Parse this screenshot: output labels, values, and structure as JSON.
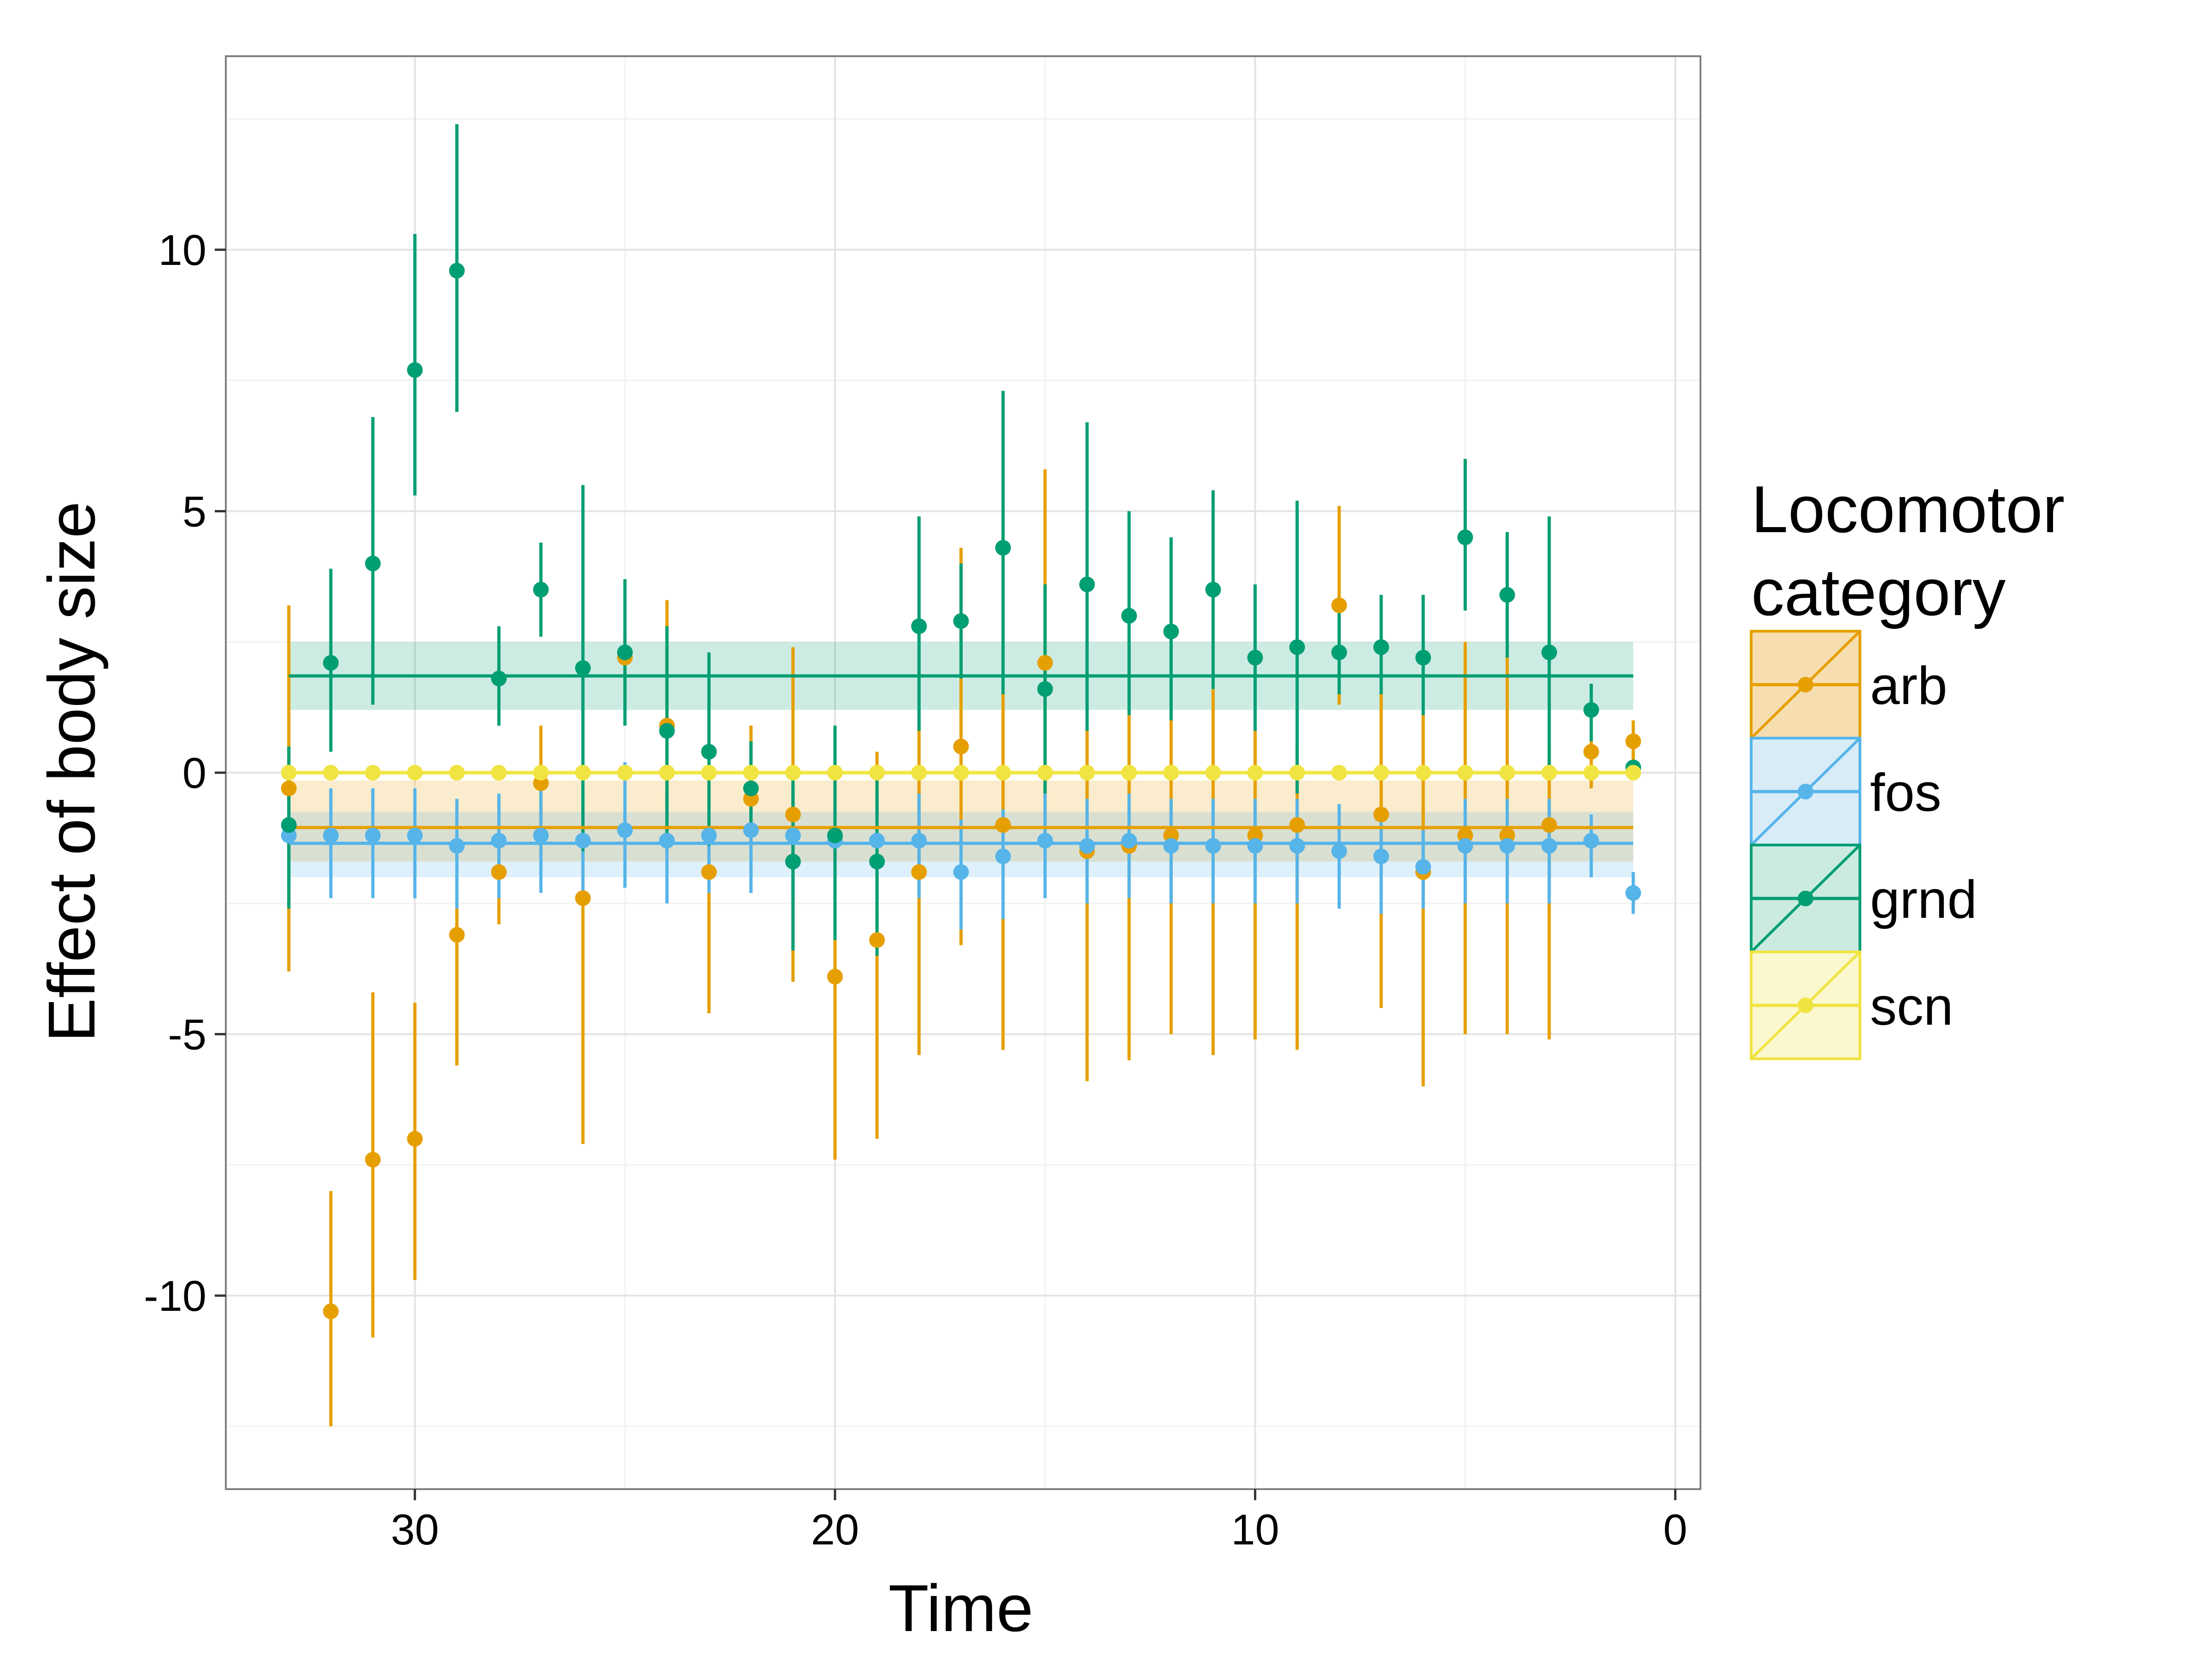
{
  "chart_data": {
    "type": "scatter",
    "xlabel": "Time",
    "ylabel": "Effect of body size",
    "xlim": [
      34.5,
      -0.6
    ],
    "ylim": [
      -13.7,
      13.7
    ],
    "x_ticks": [
      30,
      20,
      10,
      0
    ],
    "x_tick_labels": [
      "30",
      "20",
      "10",
      "0"
    ],
    "y_ticks": [
      10,
      5,
      0,
      -5,
      -10
    ],
    "y_tick_labels": [
      "10",
      "5",
      "0",
      "-5",
      "-10"
    ],
    "x_minor_ticks": [
      25,
      15,
      5
    ],
    "y_minor_ticks": [
      12.5,
      7.5,
      2.5,
      -2.5,
      -7.5,
      -12.5
    ],
    "grid": true,
    "legend": {
      "title_lines": [
        "Locomotor",
        "category"
      ],
      "position": "right"
    },
    "series": [
      {
        "name": "arb",
        "color": "#E69F00",
        "fill": "#F7DEB0",
        "mean": -1.05,
        "band": [
          -1.7,
          -0.15
        ],
        "points": [
          {
            "x": 33,
            "y": -0.3,
            "lo": -3.8,
            "hi": 3.2
          },
          {
            "x": 32,
            "y": -10.3,
            "lo": -12.5,
            "hi": -8.0
          },
          {
            "x": 31,
            "y": -7.4,
            "lo": -10.8,
            "hi": -4.2
          },
          {
            "x": 30,
            "y": -7.0,
            "lo": -9.7,
            "hi": -4.4
          },
          {
            "x": 29,
            "y": -3.1,
            "lo": -5.6,
            "hi": -2.3
          },
          {
            "x": 28,
            "y": -1.9,
            "lo": -2.9,
            "hi": -1.2
          },
          {
            "x": 27,
            "y": -0.2,
            "lo": -1.6,
            "hi": 0.9
          },
          {
            "x": 26,
            "y": -2.4,
            "lo": -7.1,
            "hi": -1.5
          },
          {
            "x": 25,
            "y": 2.2,
            "lo": 1.4,
            "hi": 2.6
          },
          {
            "x": 24,
            "y": 0.9,
            "lo": -1.5,
            "hi": 3.3
          },
          {
            "x": 23,
            "y": -1.9,
            "lo": -4.6,
            "hi": -1.2
          },
          {
            "x": 22,
            "y": -0.5,
            "lo": -1.3,
            "hi": 0.9
          },
          {
            "x": 21,
            "y": -0.8,
            "lo": -4.0,
            "hi": 2.4
          },
          {
            "x": 20,
            "y": -3.9,
            "lo": -7.4,
            "hi": -3.2
          },
          {
            "x": 19,
            "y": -3.2,
            "lo": -7.0,
            "hi": 0.4
          },
          {
            "x": 18,
            "y": -1.9,
            "lo": -5.4,
            "hi": 0.9
          },
          {
            "x": 17,
            "y": 0.5,
            "lo": -3.3,
            "hi": 4.3
          },
          {
            "x": 16,
            "y": -1.0,
            "lo": -5.3,
            "hi": 1.5
          },
          {
            "x": 15,
            "y": 2.1,
            "lo": -1.3,
            "hi": 5.8
          },
          {
            "x": 14,
            "y": -1.5,
            "lo": -5.9,
            "hi": 0.8
          },
          {
            "x": 13,
            "y": -1.4,
            "lo": -5.5,
            "hi": 1.1
          },
          {
            "x": 12,
            "y": -1.2,
            "lo": -5.0,
            "hi": 1.0
          },
          {
            "x": 11,
            "y": -1.4,
            "lo": -5.4,
            "hi": 1.6
          },
          {
            "x": 10,
            "y": -1.2,
            "lo": -5.1,
            "hi": 0.8
          },
          {
            "x": 9,
            "y": -1.0,
            "lo": -5.3,
            "hi": 0.6
          },
          {
            "x": 8,
            "y": 3.2,
            "lo": 1.3,
            "hi": 5.1
          },
          {
            "x": 7,
            "y": -0.8,
            "lo": -4.5,
            "hi": 1.5
          },
          {
            "x": 6,
            "y": -1.9,
            "lo": -6.0,
            "hi": 1.1
          },
          {
            "x": 5,
            "y": -1.2,
            "lo": -5.0,
            "hi": 2.5
          },
          {
            "x": 4,
            "y": -1.2,
            "lo": -5.0,
            "hi": 2.3
          },
          {
            "x": 3,
            "y": -1.0,
            "lo": -5.1,
            "hi": 0.5
          },
          {
            "x": 2,
            "y": 0.4,
            "lo": -0.3,
            "hi": 1.2
          },
          {
            "x": 1,
            "y": 0.6,
            "lo": 0.0,
            "hi": 1.0
          }
        ]
      },
      {
        "name": "fos",
        "color": "#56B4E9",
        "fill": "#D8ECF8",
        "mean": -1.35,
        "band": [
          -2.0,
          -0.75
        ],
        "points": [
          {
            "x": 33,
            "y": -1.2,
            "lo": -2.2,
            "hi": -0.3
          },
          {
            "x": 32,
            "y": -1.2,
            "lo": -2.4,
            "hi": -0.3
          },
          {
            "x": 31,
            "y": -1.2,
            "lo": -2.4,
            "hi": -0.3
          },
          {
            "x": 30,
            "y": -1.2,
            "lo": -2.4,
            "hi": -0.3
          },
          {
            "x": 29,
            "y": -1.4,
            "lo": -2.6,
            "hi": -0.5
          },
          {
            "x": 28,
            "y": -1.3,
            "lo": -2.4,
            "hi": -0.4
          },
          {
            "x": 27,
            "y": -1.2,
            "lo": -2.3,
            "hi": -0.3
          },
          {
            "x": 26,
            "y": -1.3,
            "lo": -2.4,
            "hi": -0.4
          },
          {
            "x": 25,
            "y": -1.1,
            "lo": -2.2,
            "hi": 0.2
          },
          {
            "x": 24,
            "y": -1.3,
            "lo": -2.5,
            "hi": -0.4
          },
          {
            "x": 23,
            "y": -1.2,
            "lo": -2.3,
            "hi": -0.3
          },
          {
            "x": 22,
            "y": -1.1,
            "lo": -2.3,
            "hi": -0.2
          },
          {
            "x": 21,
            "y": -1.2,
            "lo": -2.4,
            "hi": -0.3
          },
          {
            "x": 20,
            "y": -1.3,
            "lo": -2.4,
            "hi": -0.4
          },
          {
            "x": 19,
            "y": -1.3,
            "lo": -2.4,
            "hi": -0.4
          },
          {
            "x": 18,
            "y": -1.3,
            "lo": -2.4,
            "hi": -0.4
          },
          {
            "x": 17,
            "y": -1.9,
            "lo": -3.0,
            "hi": -0.9
          },
          {
            "x": 16,
            "y": -1.6,
            "lo": -2.8,
            "hi": -0.7
          },
          {
            "x": 15,
            "y": -1.3,
            "lo": -2.4,
            "hi": -0.4
          },
          {
            "x": 14,
            "y": -1.4,
            "lo": -2.5,
            "hi": -0.5
          },
          {
            "x": 13,
            "y": -1.3,
            "lo": -2.4,
            "hi": -0.4
          },
          {
            "x": 12,
            "y": -1.4,
            "lo": -2.5,
            "hi": -0.5
          },
          {
            "x": 11,
            "y": -1.4,
            "lo": -2.5,
            "hi": -0.5
          },
          {
            "x": 10,
            "y": -1.4,
            "lo": -2.5,
            "hi": -0.5
          },
          {
            "x": 9,
            "y": -1.4,
            "lo": -2.5,
            "hi": -0.5
          },
          {
            "x": 8,
            "y": -1.5,
            "lo": -2.6,
            "hi": -0.6
          },
          {
            "x": 7,
            "y": -1.6,
            "lo": -2.7,
            "hi": -0.7
          },
          {
            "x": 6,
            "y": -1.8,
            "lo": -2.6,
            "hi": -1.1
          },
          {
            "x": 5,
            "y": -1.4,
            "lo": -2.5,
            "hi": -0.5
          },
          {
            "x": 4,
            "y": -1.4,
            "lo": -2.5,
            "hi": -0.5
          },
          {
            "x": 3,
            "y": -1.4,
            "lo": -2.5,
            "hi": -0.5
          },
          {
            "x": 2,
            "y": -1.3,
            "lo": -2.0,
            "hi": -0.8
          },
          {
            "x": 1,
            "y": -2.3,
            "lo": -2.7,
            "hi": -1.9
          }
        ]
      },
      {
        "name": "grnd",
        "color": "#009E73",
        "fill": "#CCEBE0",
        "mean": 1.85,
        "band": [
          1.2,
          2.5
        ],
        "points": [
          {
            "x": 33,
            "y": -1.0,
            "lo": -2.6,
            "hi": 0.5
          },
          {
            "x": 32,
            "y": 2.1,
            "lo": 0.4,
            "hi": 3.9
          },
          {
            "x": 31,
            "y": 4.0,
            "lo": 1.3,
            "hi": 6.8
          },
          {
            "x": 30,
            "y": 7.7,
            "lo": 5.3,
            "hi": 10.3
          },
          {
            "x": 29,
            "y": 9.6,
            "lo": 6.9,
            "hi": 12.4
          },
          {
            "x": 28,
            "y": 1.8,
            "lo": 0.9,
            "hi": 2.8
          },
          {
            "x": 27,
            "y": 3.5,
            "lo": 2.6,
            "hi": 4.4
          },
          {
            "x": 26,
            "y": 2.0,
            "lo": -1.5,
            "hi": 5.5
          },
          {
            "x": 25,
            "y": 2.3,
            "lo": 0.9,
            "hi": 3.7
          },
          {
            "x": 24,
            "y": 0.8,
            "lo": -1.3,
            "hi": 2.8
          },
          {
            "x": 23,
            "y": 0.4,
            "lo": -1.4,
            "hi": 2.3
          },
          {
            "x": 22,
            "y": -0.3,
            "lo": -1.2,
            "hi": 0.6
          },
          {
            "x": 21,
            "y": -1.7,
            "lo": -3.4,
            "hi": 0.0
          },
          {
            "x": 20,
            "y": -1.2,
            "lo": -3.2,
            "hi": 0.9
          },
          {
            "x": 19,
            "y": -1.7,
            "lo": -3.5,
            "hi": 0.1
          },
          {
            "x": 18,
            "y": 2.8,
            "lo": 0.8,
            "hi": 4.9
          },
          {
            "x": 17,
            "y": 2.9,
            "lo": 1.8,
            "hi": 4.0
          },
          {
            "x": 16,
            "y": 4.3,
            "lo": 1.5,
            "hi": 7.3
          },
          {
            "x": 15,
            "y": 1.6,
            "lo": -0.4,
            "hi": 3.6
          },
          {
            "x": 14,
            "y": 3.6,
            "lo": 0.8,
            "hi": 6.7
          },
          {
            "x": 13,
            "y": 3.0,
            "lo": 1.1,
            "hi": 5.0
          },
          {
            "x": 12,
            "y": 2.7,
            "lo": 1.0,
            "hi": 4.5
          },
          {
            "x": 11,
            "y": 3.5,
            "lo": 1.6,
            "hi": 5.4
          },
          {
            "x": 10,
            "y": 2.2,
            "lo": 0.8,
            "hi": 3.6
          },
          {
            "x": 9,
            "y": 2.4,
            "lo": -0.4,
            "hi": 5.2
          },
          {
            "x": 8,
            "y": 2.3,
            "lo": 1.5,
            "hi": 3.2
          },
          {
            "x": 7,
            "y": 2.4,
            "lo": 1.5,
            "hi": 3.4
          },
          {
            "x": 6,
            "y": 2.2,
            "lo": 1.1,
            "hi": 3.4
          },
          {
            "x": 5,
            "y": 4.5,
            "lo": 3.1,
            "hi": 6.0
          },
          {
            "x": 4,
            "y": 3.4,
            "lo": 2.2,
            "hi": 4.6
          },
          {
            "x": 3,
            "y": 2.3,
            "lo": -0.1,
            "hi": 4.9
          },
          {
            "x": 2,
            "y": 1.2,
            "lo": 0.6,
            "hi": 1.7
          },
          {
            "x": 1,
            "y": 0.1,
            "lo": 0.0,
            "hi": 0.2
          }
        ]
      },
      {
        "name": "scn",
        "color": "#F0E442",
        "fill": "#FBF7CF",
        "mean": 0.0,
        "band": [
          -0.05,
          0.05
        ],
        "points": [
          {
            "x": 33,
            "y": 0
          },
          {
            "x": 32,
            "y": 0
          },
          {
            "x": 31,
            "y": 0
          },
          {
            "x": 30,
            "y": 0
          },
          {
            "x": 29,
            "y": 0
          },
          {
            "x": 28,
            "y": 0
          },
          {
            "x": 27,
            "y": 0
          },
          {
            "x": 26,
            "y": 0
          },
          {
            "x": 25,
            "y": 0
          },
          {
            "x": 24,
            "y": 0
          },
          {
            "x": 23,
            "y": 0
          },
          {
            "x": 22,
            "y": 0
          },
          {
            "x": 21,
            "y": 0
          },
          {
            "x": 20,
            "y": 0
          },
          {
            "x": 19,
            "y": 0
          },
          {
            "x": 18,
            "y": 0
          },
          {
            "x": 17,
            "y": 0
          },
          {
            "x": 16,
            "y": 0
          },
          {
            "x": 15,
            "y": 0
          },
          {
            "x": 14,
            "y": 0
          },
          {
            "x": 13,
            "y": 0
          },
          {
            "x": 12,
            "y": 0
          },
          {
            "x": 11,
            "y": 0
          },
          {
            "x": 10,
            "y": 0
          },
          {
            "x": 9,
            "y": 0
          },
          {
            "x": 8,
            "y": 0
          },
          {
            "x": 7,
            "y": 0
          },
          {
            "x": 6,
            "y": 0
          },
          {
            "x": 5,
            "y": 0
          },
          {
            "x": 4,
            "y": 0
          },
          {
            "x": 3,
            "y": 0
          },
          {
            "x": 2,
            "y": 0
          },
          {
            "x": 1,
            "y": 0
          }
        ]
      }
    ]
  }
}
